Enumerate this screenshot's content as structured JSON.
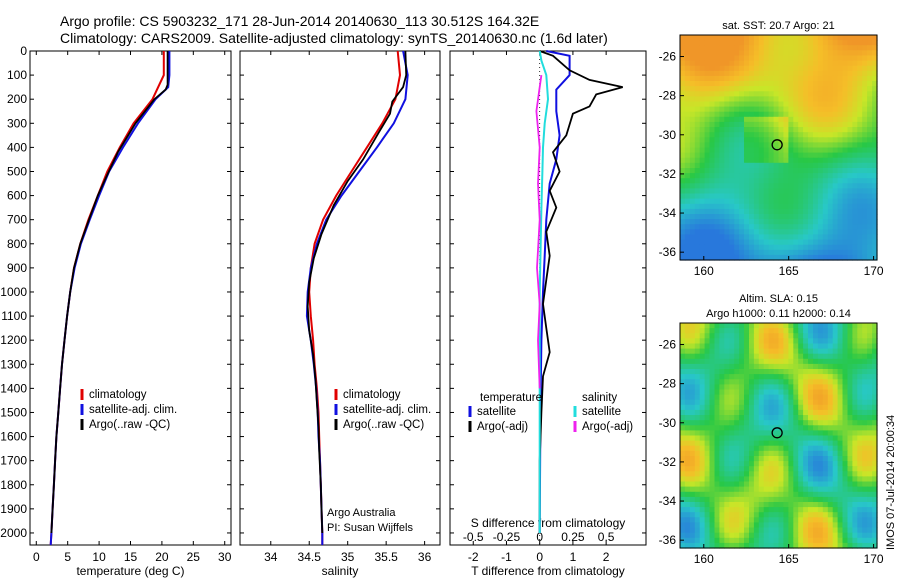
{
  "header": {
    "title_line1": "Argo profile: CS 5903232_171 28-Jun-2014 20140630_113 30.512S 164.32E",
    "title_line2": "Climatology: CARS2009. Satellite-adjusted climatology: synTS_20140630.nc (1.6d later)"
  },
  "colors": {
    "climatology": "#e00000",
    "satellite": "#1010e0",
    "argo": "#000000",
    "sal_sat": "#22dddd",
    "sal_argo": "#ee22ee"
  },
  "credits": {
    "line1": "Argo Australia",
    "line2": "PI: Susan Wijffels"
  },
  "side_label": "IMOS 07-Jul-2014 20:00:34",
  "maps": [
    {
      "title_lines": [
        "sat. SST: 20.7 Argo: 21"
      ],
      "xticks": [
        "160",
        "165",
        "170"
      ],
      "yticks": [
        "-26",
        "-28",
        "-30",
        "-32",
        "-34",
        "-36"
      ],
      "colormap": "sst"
    },
    {
      "title_lines": [
        "Altim. SLA: 0.15",
        "Argo h1000: 0.11 h2000: 0.14"
      ],
      "xticks": [
        "160",
        "165",
        "170"
      ],
      "yticks": [
        "-26",
        "-28",
        "-30",
        "-32",
        "-34",
        "-36"
      ],
      "colormap": "sla"
    }
  ],
  "chart_data": [
    {
      "type": "line",
      "id": "temperature",
      "xlabel": "temperature (deg C)",
      "ylabel": "",
      "xlim": [
        -1,
        31
      ],
      "ylim": [
        2050,
        0
      ],
      "xticks": [
        "0",
        "5",
        "10",
        "15",
        "20",
        "25",
        "30"
      ],
      "yticks": [
        "0",
        "100",
        "200",
        "300",
        "400",
        "500",
        "600",
        "700",
        "800",
        "900",
        "1000",
        "1100",
        "1200",
        "1300",
        "1400",
        "1500",
        "1600",
        "1700",
        "1800",
        "1900",
        "2000"
      ],
      "legend": [
        "climatology",
        "satellite-adj. clim.",
        "Argo(..raw -QC)"
      ],
      "series": [
        {
          "name": "climatology",
          "color": "#e00000",
          "values": [
            [
              20.3,
              0
            ],
            [
              20.3,
              60
            ],
            [
              20.3,
              100
            ],
            [
              18.5,
              200
            ],
            [
              15.5,
              300
            ],
            [
              13.3,
              400
            ],
            [
              11.3,
              500
            ],
            [
              9.8,
              600
            ],
            [
              8.3,
              700
            ],
            [
              7.0,
              800
            ],
            [
              6.0,
              900
            ],
            [
              5.4,
              1000
            ],
            [
              4.9,
              1100
            ],
            [
              4.5,
              1200
            ],
            [
              4.1,
              1300
            ],
            [
              3.8,
              1400
            ],
            [
              3.5,
              1500
            ],
            [
              3.2,
              1600
            ],
            [
              3.0,
              1700
            ],
            [
              2.8,
              1800
            ],
            [
              2.6,
              1900
            ],
            [
              2.4,
              2000
            ],
            [
              2.3,
              2050
            ]
          ]
        },
        {
          "name": "satellite-adj. clim.",
          "color": "#1010e0",
          "values": [
            [
              21.2,
              0
            ],
            [
              21.2,
              100
            ],
            [
              21.0,
              150
            ],
            [
              19.0,
              200
            ],
            [
              16.2,
              300
            ],
            [
              13.8,
              400
            ],
            [
              11.6,
              500
            ],
            [
              10.0,
              600
            ],
            [
              8.5,
              700
            ],
            [
              7.1,
              800
            ],
            [
              6.1,
              900
            ],
            [
              5.4,
              1000
            ],
            [
              4.9,
              1100
            ],
            [
              4.5,
              1200
            ],
            [
              4.1,
              1300
            ],
            [
              3.8,
              1400
            ],
            [
              3.5,
              1500
            ],
            [
              3.2,
              1600
            ],
            [
              3.0,
              1700
            ],
            [
              2.8,
              1800
            ],
            [
              2.6,
              1900
            ],
            [
              2.4,
              2000
            ],
            [
              2.3,
              2050
            ]
          ]
        },
        {
          "name": "Argo(..raw -QC)",
          "color": "#000000",
          "values": [
            [
              20.9,
              0
            ],
            [
              20.9,
              140
            ],
            [
              20.6,
              160
            ],
            [
              18.8,
              200
            ],
            [
              15.8,
              300
            ],
            [
              13.0,
              420
            ],
            [
              11.2,
              520
            ],
            [
              9.8,
              600
            ],
            [
              8.4,
              700
            ],
            [
              7.0,
              800
            ],
            [
              6.0,
              900
            ],
            [
              5.4,
              1000
            ],
            [
              4.9,
              1100
            ],
            [
              4.5,
              1200
            ],
            [
              4.1,
              1300
            ],
            [
              3.8,
              1400
            ],
            [
              3.5,
              1500
            ],
            [
              3.2,
              1600
            ],
            [
              3.0,
              1700
            ],
            [
              2.8,
              1800
            ],
            [
              2.6,
              1900
            ],
            [
              2.4,
              2000
            ]
          ]
        }
      ]
    },
    {
      "type": "line",
      "id": "salinity",
      "xlabel": "salinity",
      "ylabel": "",
      "xlim": [
        33.6,
        36.2
      ],
      "ylim": [
        2050,
        0
      ],
      "xticks": [
        "34",
        "34.5",
        "35",
        "35.5",
        "36"
      ],
      "legend": [
        "climatology",
        "satellite-adj. clim.",
        "Argo(..raw -QC)"
      ],
      "series": [
        {
          "name": "climatology",
          "color": "#e00000",
          "values": [
            [
              35.65,
              0
            ],
            [
              35.68,
              100
            ],
            [
              35.62,
              200
            ],
            [
              35.45,
              300
            ],
            [
              35.25,
              400
            ],
            [
              35.05,
              500
            ],
            [
              34.85,
              600
            ],
            [
              34.68,
              700
            ],
            [
              34.57,
              800
            ],
            [
              34.52,
              900
            ],
            [
              34.5,
              1000
            ],
            [
              34.52,
              1100
            ],
            [
              34.55,
              1200
            ],
            [
              34.57,
              1300
            ],
            [
              34.6,
              1400
            ],
            [
              34.62,
              1500
            ],
            [
              34.63,
              1600
            ],
            [
              34.64,
              1700
            ],
            [
              34.65,
              1800
            ],
            [
              34.66,
              1900
            ],
            [
              34.67,
              2000
            ],
            [
              34.67,
              2050
            ]
          ]
        },
        {
          "name": "satellite-adj. clim.",
          "color": "#1010e0",
          "values": [
            [
              35.72,
              0
            ],
            [
              35.78,
              100
            ],
            [
              35.75,
              200
            ],
            [
              35.6,
              300
            ],
            [
              35.38,
              400
            ],
            [
              35.15,
              500
            ],
            [
              34.92,
              600
            ],
            [
              34.72,
              700
            ],
            [
              34.6,
              800
            ],
            [
              34.52,
              900
            ],
            [
              34.48,
              1000
            ],
            [
              34.47,
              1100
            ],
            [
              34.52,
              1200
            ],
            [
              34.56,
              1300
            ],
            [
              34.59,
              1400
            ],
            [
              34.61,
              1500
            ],
            [
              34.62,
              1600
            ],
            [
              34.64,
              1700
            ],
            [
              34.65,
              1800
            ],
            [
              34.66,
              1900
            ],
            [
              34.67,
              2000
            ],
            [
              34.67,
              2050
            ]
          ]
        },
        {
          "name": "Argo(..raw -QC)",
          "color": "#000000",
          "values": [
            [
              35.75,
              0
            ],
            [
              35.76,
              100
            ],
            [
              35.72,
              150
            ],
            [
              35.58,
              210
            ],
            [
              35.55,
              260
            ],
            [
              35.4,
              340
            ],
            [
              35.2,
              450
            ],
            [
              35.0,
              540
            ],
            [
              34.82,
              640
            ],
            [
              34.66,
              760
            ],
            [
              34.56,
              860
            ],
            [
              34.5,
              960
            ],
            [
              34.48,
              1060
            ],
            [
              34.5,
              1160
            ],
            [
              34.55,
              1260
            ],
            [
              34.58,
              1360
            ],
            [
              34.6,
              1460
            ],
            [
              34.62,
              1560
            ],
            [
              34.63,
              1660
            ],
            [
              34.65,
              1800
            ],
            [
              34.66,
              1900
            ],
            [
              34.67,
              2000
            ]
          ]
        }
      ]
    },
    {
      "type": "line",
      "id": "difference",
      "xlabel": "T difference from climatology",
      "xlabel2": "S difference from climatology",
      "xlim": [
        -2.7,
        3.2
      ],
      "ylim": [
        2050,
        0
      ],
      "xticks": [
        "-2",
        "-1",
        "0",
        "1",
        "2"
      ],
      "xticks_top": [
        "-0.5",
        "-0.25",
        "0",
        "0.25",
        "0.5"
      ],
      "legend": {
        "temperature_header": "temperature",
        "salinity_header": "salinity",
        "t_sat": "satellite",
        "t_argo": "Argo(-adj)",
        "s_sat": "satellite",
        "s_argo": "Argo(-adj)"
      },
      "series": [
        {
          "name": "satellite",
          "color": "#1010e0",
          "values": [
            [
              0.2,
              0
            ],
            [
              0.9,
              20
            ],
            [
              0.9,
              100
            ],
            [
              0.5,
              160
            ],
            [
              0.5,
              250
            ],
            [
              0.6,
              350
            ],
            [
              0.5,
              450
            ],
            [
              0.3,
              550
            ],
            [
              0.2,
              700
            ],
            [
              0.15,
              850
            ],
            [
              0.1,
              1000
            ],
            [
              0.05,
              1200
            ],
            [
              0.02,
              1500
            ],
            [
              0.0,
              2000
            ]
          ]
        },
        {
          "name": "Argo(-adj)",
          "color": "#000000",
          "values": [
            [
              0.0,
              0
            ],
            [
              0.4,
              20
            ],
            [
              0.9,
              80
            ],
            [
              1.5,
              120
            ],
            [
              2.5,
              150
            ],
            [
              1.7,
              180
            ],
            [
              1.5,
              230
            ],
            [
              1.0,
              260
            ],
            [
              0.8,
              350
            ],
            [
              0.4,
              420
            ],
            [
              0.6,
              500
            ],
            [
              0.3,
              580
            ],
            [
              0.5,
              650
            ],
            [
              0.2,
              750
            ],
            [
              0.3,
              850
            ],
            [
              0.2,
              950
            ],
            [
              0.1,
              1050
            ],
            [
              0.2,
              1150
            ],
            [
              0.3,
              1250
            ],
            [
              0.1,
              1350
            ],
            [
              0.05,
              1500
            ],
            [
              0.0,
              1700
            ],
            [
              0.0,
              2000
            ]
          ]
        },
        {
          "name": "S satellite",
          "color": "#22dddd",
          "values": [
            [
              0.0,
              0
            ],
            [
              0.05,
              40
            ],
            [
              0.2,
              100
            ],
            [
              0.25,
              200
            ],
            [
              0.15,
              300
            ],
            [
              0.1,
              400
            ],
            [
              0.08,
              500
            ],
            [
              0.05,
              650
            ],
            [
              0.03,
              800
            ],
            [
              0.0,
              1000
            ],
            [
              0.0,
              2000
            ]
          ]
        },
        {
          "name": "S Argo(-adj)",
          "color": "#ee22ee",
          "values": [
            [
              0.05,
              100
            ],
            [
              0.0,
              150
            ],
            [
              -0.1,
              250
            ],
            [
              0.0,
              400
            ],
            [
              -0.05,
              550
            ],
            [
              0.0,
              700
            ],
            [
              -0.08,
              900
            ],
            [
              0.0,
              1050
            ],
            [
              -0.05,
              1200
            ],
            [
              0.0,
              1400
            ]
          ]
        }
      ]
    }
  ]
}
